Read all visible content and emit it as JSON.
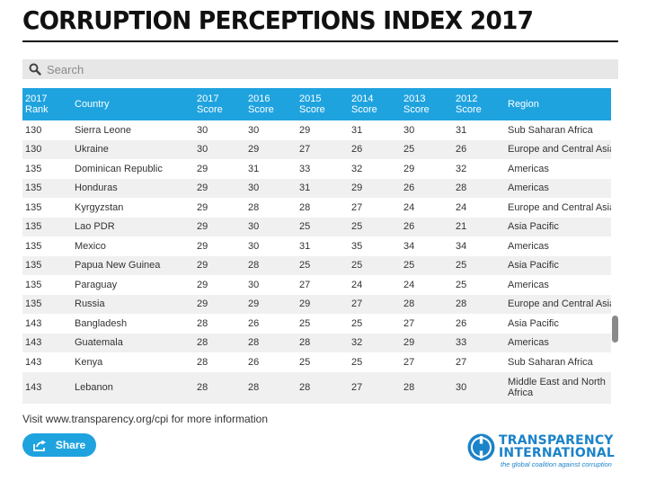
{
  "page": {
    "title": "CORRUPTION PERCEPTIONS INDEX 2017"
  },
  "search": {
    "placeholder": "Search",
    "value": ""
  },
  "table": {
    "columns": [
      "2017 Rank",
      "Country",
      "2017 Score",
      "2016 Score",
      "2015 Score",
      "2014 Score",
      "2013 Score",
      "2012 Score",
      "Region"
    ],
    "header_lines": [
      [
        "2017",
        "Rank"
      ],
      [
        "Country"
      ],
      [
        "2017",
        "Score"
      ],
      [
        "2016",
        "Score"
      ],
      [
        "2015",
        "Score"
      ],
      [
        "2014",
        "Score"
      ],
      [
        "2013",
        "Score"
      ],
      [
        "2012",
        "Score"
      ],
      [
        "Region"
      ]
    ],
    "rows": [
      [
        "130",
        "Sierra Leone",
        "30",
        "30",
        "29",
        "31",
        "30",
        "31",
        "Sub Saharan Africa"
      ],
      [
        "130",
        "Ukraine",
        "30",
        "29",
        "27",
        "26",
        "25",
        "26",
        "Europe and Central Asia"
      ],
      [
        "135",
        "Dominican Republic",
        "29",
        "31",
        "33",
        "32",
        "29",
        "32",
        "Americas"
      ],
      [
        "135",
        "Honduras",
        "29",
        "30",
        "31",
        "29",
        "26",
        "28",
        "Americas"
      ],
      [
        "135",
        "Kyrgyzstan",
        "29",
        "28",
        "28",
        "27",
        "24",
        "24",
        "Europe and Central Asia"
      ],
      [
        "135",
        "Lao PDR",
        "29",
        "30",
        "25",
        "25",
        "26",
        "21",
        "Asia Pacific"
      ],
      [
        "135",
        "Mexico",
        "29",
        "30",
        "31",
        "35",
        "34",
        "34",
        "Americas"
      ],
      [
        "135",
        "Papua New Guinea",
        "29",
        "28",
        "25",
        "25",
        "25",
        "25",
        "Asia Pacific"
      ],
      [
        "135",
        "Paraguay",
        "29",
        "30",
        "27",
        "24",
        "24",
        "25",
        "Americas"
      ],
      [
        "135",
        "Russia",
        "29",
        "29",
        "29",
        "27",
        "28",
        "28",
        "Europe and Central Asia"
      ],
      [
        "143",
        "Bangladesh",
        "28",
        "26",
        "25",
        "25",
        "27",
        "26",
        "Asia Pacific"
      ],
      [
        "143",
        "Guatemala",
        "28",
        "28",
        "28",
        "32",
        "29",
        "33",
        "Americas"
      ],
      [
        "143",
        "Kenya",
        "28",
        "26",
        "25",
        "25",
        "27",
        "27",
        "Sub Saharan Africa"
      ],
      [
        "143",
        "Lebanon",
        "28",
        "28",
        "28",
        "27",
        "28",
        "30",
        "Middle East and North Africa"
      ]
    ]
  },
  "footer": {
    "visit_text": "Visit www.transparency.org/cpi for more information",
    "share_label": "Share"
  },
  "logo": {
    "line1": "TRANSPARENCY",
    "line2": "INTERNATIONAL",
    "tagline": "the global coalition against corruption"
  },
  "colors": {
    "header_bg": "#1fa3df",
    "accent": "#1fa3df",
    "logo": "#1b83c9",
    "stripe": "#f0f0f0"
  }
}
